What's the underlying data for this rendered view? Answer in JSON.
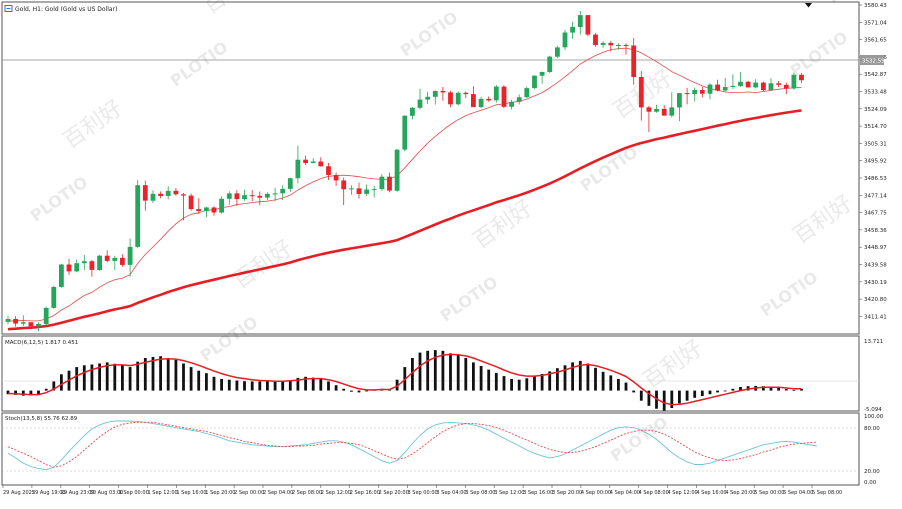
{
  "header": {
    "symbol_label": "Gold, H1:  Gold (Gold vs US Dollar)"
  },
  "watermark": {
    "brand": "PLOTIO",
    "cn": "百利好"
  },
  "price_panel": {
    "current_price": "3532.59",
    "y_ticks": [
      "3580.43",
      "3571.04",
      "3561.65",
      "3552.26",
      "3542.87",
      "3533.48",
      "3524.09",
      "3514.70",
      "3505.31",
      "3495.92",
      "3486.53",
      "3477.14",
      "3467.75",
      "3458.36",
      "3448.97",
      "3439.58",
      "3430.19",
      "3420.80",
      "3411.41"
    ]
  },
  "macd_panel": {
    "label": "MACD(6,12,5) 1.817 0.451",
    "y_ticks": [
      "13.711",
      "-5.094"
    ]
  },
  "stoch_panel": {
    "label": "Stoch(13,5,8) 55.76 62.89",
    "y_ticks": [
      "100.00",
      "80.00",
      "20.00",
      "0.00"
    ]
  },
  "x_axis": {
    "labels": [
      "29 Aug 2025",
      "29 Aug 19:00",
      "29 Aug 23:00",
      "30 Aug 03:00",
      "1 Sep 00:00",
      "1 Sep 12:00",
      "1 Sep 16:00",
      "1 Sep 20:00",
      "2 Sep 00:00",
      "2 Sep 04:00",
      "2 Sep 08:00",
      "2 Sep 12:00",
      "2 Sep 16:00",
      "2 Sep 20:00",
      "3 Sep 00:00",
      "3 Sep 04:00",
      "3 Sep 08:00",
      "3 Sep 12:00",
      "3 Sep 16:00",
      "3 Sep 20:00",
      "4 Sep 00:00",
      "4 Sep 04:00",
      "4 Sep 08:00",
      "4 Sep 12:00",
      "4 Sep 16:00",
      "4 Sep 20:00",
      "5 Sep 00:00",
      "5 Sep 04:00",
      "5 Sep 08:00"
    ]
  },
  "colors": {
    "bull": "#26a65b",
    "bear": "#e8232a",
    "ma_fast": "#e84a4a",
    "ma_slow": "#e81d23",
    "macd_signal": "#e81d23",
    "stoch_main": "#6fc2d8",
    "stoch_signal": "#e84a4a"
  },
  "chart_data": {
    "type": "candlestick",
    "ohlc": [
      [
        3410.5,
        3413.8,
        3409.2,
        3412.0
      ],
      [
        3412.0,
        3413.5,
        3407.9,
        3409.5
      ],
      [
        3409.5,
        3414.0,
        3408.3,
        3410.3
      ],
      [
        3410.3,
        3410.0,
        3406.4,
        3408.1
      ],
      [
        3408.1,
        3410.2,
        3405.4,
        3409.3
      ],
      [
        3409.3,
        3418.6,
        3408.8,
        3418.0
      ],
      [
        3418.0,
        3430.0,
        3417.5,
        3429.3
      ],
      [
        3429.3,
        3441.8,
        3428.9,
        3441.4
      ],
      [
        3441.4,
        3444.5,
        3435.9,
        3437.7
      ],
      [
        3437.7,
        3444.2,
        3437.2,
        3442.1
      ],
      [
        3442.1,
        3446.6,
        3438.4,
        3443.2
      ],
      [
        3443.2,
        3443.9,
        3434.9,
        3438.5
      ],
      [
        3438.5,
        3446.6,
        3438.0,
        3446.2
      ],
      [
        3446.2,
        3449.1,
        3442.6,
        3443.4
      ],
      [
        3443.4,
        3446.1,
        3438.4,
        3445.0
      ],
      [
        3445.0,
        3446.9,
        3440.2,
        3441.2
      ],
      [
        3441.2,
        3455.5,
        3434.8,
        3450.9
      ],
      [
        3450.9,
        3487.0,
        3450.4,
        3484.2
      ],
      [
        3484.2,
        3486.7,
        3470.5,
        3475.9
      ],
      [
        3475.9,
        3481.5,
        3474.6,
        3479.6
      ],
      [
        3479.6,
        3480.8,
        3477.2,
        3478.4
      ],
      [
        3478.4,
        3483.6,
        3476.6,
        3481.2
      ],
      [
        3481.2,
        3482.7,
        3478.5,
        3479.3
      ],
      [
        3479.3,
        3480.0,
        3465.2,
        3478.6
      ],
      [
        3478.6,
        3479.7,
        3470.4,
        3471.3
      ],
      [
        3471.3,
        3477.2,
        3468.7,
        3470.3
      ],
      [
        3470.3,
        3472.6,
        3467.0,
        3472.2
      ],
      [
        3472.2,
        3472.8,
        3467.7,
        3469.5
      ],
      [
        3469.5,
        3478.3,
        3468.9,
        3476.9
      ],
      [
        3476.9,
        3480.9,
        3473.7,
        3479.8
      ],
      [
        3479.8,
        3481.6,
        3473.1,
        3476.7
      ],
      [
        3476.7,
        3481.8,
        3475.8,
        3478.8
      ],
      [
        3478.8,
        3481.6,
        3475.6,
        3478.5
      ],
      [
        3478.5,
        3480.8,
        3473.4,
        3477.5
      ],
      [
        3477.5,
        3480.4,
        3476.1,
        3479.5
      ],
      [
        3479.5,
        3482.8,
        3475.6,
        3479.8
      ],
      [
        3479.8,
        3484.2,
        3476.1,
        3482.2
      ],
      [
        3482.2,
        3488.4,
        3480.6,
        3488.0
      ],
      [
        3488.0,
        3505.5,
        3485.2,
        3498.0
      ],
      [
        3498.0,
        3500.2,
        3495.2,
        3496.2
      ],
      [
        3496.2,
        3498.8,
        3496.0,
        3497.0
      ],
      [
        3497.0,
        3499.3,
        3494.2,
        3494.4
      ],
      [
        3494.4,
        3496.2,
        3487.0,
        3489.7
      ],
      [
        3489.7,
        3491.0,
        3483.9,
        3486.8
      ],
      [
        3486.8,
        3488.3,
        3473.5,
        3482.0
      ],
      [
        3482.0,
        3484.2,
        3479.1,
        3482.5
      ],
      [
        3482.5,
        3485.7,
        3477.0,
        3479.5
      ],
      [
        3479.5,
        3484.6,
        3478.5,
        3481.9
      ],
      [
        3481.9,
        3483.8,
        3477.7,
        3482.1
      ],
      [
        3482.1,
        3490.2,
        3481.3,
        3488.8
      ],
      [
        3488.8,
        3491.0,
        3480.4,
        3481.3
      ],
      [
        3481.3,
        3503.9,
        3480.7,
        3503.4
      ],
      [
        3503.4,
        3521.9,
        3502.5,
        3521.7
      ],
      [
        3521.7,
        3526.4,
        3519.7,
        3526.0
      ],
      [
        3526.0,
        3536.3,
        3525.1,
        3530.4
      ],
      [
        3530.4,
        3534.6,
        3528.1,
        3531.9
      ],
      [
        3531.9,
        3535.2,
        3527.7,
        3535.1
      ],
      [
        3535.1,
        3537.2,
        3529.7,
        3534.3
      ],
      [
        3534.3,
        3535.1,
        3526.3,
        3527.9
      ],
      [
        3527.9,
        3534.8,
        3527.3,
        3534.1
      ],
      [
        3534.1,
        3534.6,
        3531.2,
        3533.4
      ],
      [
        3533.4,
        3537.6,
        3526.4,
        3526.4
      ],
      [
        3526.4,
        3532.0,
        3525.8,
        3530.8
      ],
      [
        3530.8,
        3532.1,
        3529.3,
        3530.0
      ],
      [
        3530.0,
        3538.3,
        3528.8,
        3537.4
      ],
      [
        3537.4,
        3538.2,
        3525.9,
        3526.5
      ],
      [
        3526.5,
        3530.4,
        3525.1,
        3529.2
      ],
      [
        3529.2,
        3533.2,
        3527.8,
        3531.7
      ],
      [
        3531.7,
        3537.5,
        3531.2,
        3536.6
      ],
      [
        3536.6,
        3543.6,
        3536.2,
        3543.3
      ],
      [
        3543.3,
        3545.6,
        3539.0,
        3545.3
      ],
      [
        3545.3,
        3554.1,
        3544.8,
        3553.6
      ],
      [
        3553.6,
        3559.4,
        3552.8,
        3558.6
      ],
      [
        3558.6,
        3568.0,
        3557.2,
        3566.6
      ],
      [
        3566.6,
        3572.4,
        3563.3,
        3569.6
      ],
      [
        3569.6,
        3578.2,
        3565.5,
        3576.0
      ],
      [
        3576.0,
        3575.4,
        3564.6,
        3565.5
      ],
      [
        3565.5,
        3566.3,
        3558.9,
        3559.9
      ],
      [
        3559.9,
        3561.8,
        3558.4,
        3561.0
      ],
      [
        3561.0,
        3562.1,
        3556.4,
        3559.7
      ],
      [
        3559.7,
        3560.8,
        3557.4,
        3559.9
      ],
      [
        3559.9,
        3560.8,
        3554.7,
        3559.6
      ],
      [
        3559.6,
        3563.6,
        3538.5,
        3542.6
      ],
      [
        3542.6,
        3545.8,
        3519.1,
        3526.2
      ],
      [
        3526.2,
        3527.0,
        3512.9,
        3523.9
      ],
      [
        3523.9,
        3527.6,
        3523.3,
        3525.4
      ],
      [
        3525.4,
        3527.4,
        3521.8,
        3521.8
      ],
      [
        3521.8,
        3534.4,
        3520.8,
        3526.2
      ],
      [
        3526.2,
        3534.0,
        3518.8,
        3533.9
      ],
      [
        3533.9,
        3536.7,
        3527.8,
        3533.4
      ],
      [
        3533.4,
        3536.9,
        3529.4,
        3535.6
      ],
      [
        3535.6,
        3537.3,
        3531.6,
        3533.6
      ],
      [
        3533.6,
        3539.2,
        3530.5,
        3538.5
      ],
      [
        3538.5,
        3541.1,
        3534.8,
        3535.3
      ],
      [
        3535.3,
        3542.1,
        3534.6,
        3537.2
      ],
      [
        3537.2,
        3544.0,
        3536.1,
        3537.8
      ],
      [
        3537.8,
        3545.2,
        3537.2,
        3540.0
      ],
      [
        3540.0,
        3540.5,
        3536.9,
        3537.0
      ],
      [
        3537.0,
        3541.4,
        3536.5,
        3539.6
      ],
      [
        3539.6,
        3540.1,
        3535.0,
        3535.5
      ],
      [
        3535.5,
        3541.9,
        3535.0,
        3539.2
      ],
      [
        3539.2,
        3540.4,
        3537.2,
        3538.4
      ],
      [
        3538.4,
        3539.6,
        3533.3,
        3536.4
      ],
      [
        3536.4,
        3545.0,
        3535.7,
        3543.8
      ],
      [
        3543.8,
        3544.7,
        3539.3,
        3540.9
      ]
    ],
    "ma_fast": [
      3410.8,
      3411.1,
      3411.2,
      3411.0,
      3411.0,
      3412.0,
      3413.9,
      3416.8,
      3419.1,
      3422.0,
      3424.7,
      3426.4,
      3429.2,
      3431.6,
      3433.2,
      3434.1,
      3436.0,
      3442.0,
      3446.9,
      3450.9,
      3455.0,
      3459.4,
      3463.4,
      3466.5,
      3468.5,
      3469.3,
      3470.7,
      3471.0,
      3472.1,
      3472.7,
      3473.7,
      3474.3,
      3474.9,
      3475.3,
      3475.6,
      3476.3,
      3477.3,
      3478.9,
      3481.6,
      3484.0,
      3486.0,
      3487.8,
      3489.0,
      3489.4,
      3489.6,
      3489.3,
      3488.8,
      3488.1,
      3487.6,
      3487.4,
      3487.4,
      3489.3,
      3493.6,
      3498.2,
      3502.7,
      3506.9,
      3510.6,
      3513.9,
      3517.0,
      3519.6,
      3521.8,
      3523.3,
      3524.7,
      3526.0,
      3527.6,
      3528.1,
      3528.9,
      3529.5,
      3530.7,
      3532.4,
      3534.2,
      3536.7,
      3539.6,
      3542.7,
      3546.0,
      3549.6,
      3552.0,
      3554.2,
      3556.0,
      3557.4,
      3557.9,
      3558.2,
      3557.3,
      3555.6,
      3553.3,
      3550.9,
      3548.2,
      3545.5,
      3543.6,
      3541.5,
      3539.6,
      3537.8,
      3536.3,
      3535.5,
      3534.5,
      3534.2,
      3534.3,
      3534.5,
      3534.2,
      3534.8,
      3535.4,
      3536.0,
      3536.4,
      3536.8,
      3537.0
    ],
    "ma_slow": [
      3406.5,
      3406.8,
      3407.1,
      3407.3,
      3407.7,
      3408.2,
      3409.0,
      3410.0,
      3411.1,
      3412.1,
      3413.2,
      3414.1,
      3415.1,
      3416.2,
      3417.2,
      3418.0,
      3419.0,
      3420.7,
      3422.2,
      3423.7,
      3425.1,
      3426.6,
      3427.9,
      3429.2,
      3430.3,
      3431.3,
      3432.3,
      3433.2,
      3434.2,
      3435.2,
      3436.1,
      3437.0,
      3437.9,
      3438.8,
      3439.7,
      3440.6,
      3441.5,
      3442.5,
      3443.8,
      3444.9,
      3445.9,
      3446.9,
      3447.8,
      3448.6,
      3449.4,
      3450.1,
      3450.8,
      3451.5,
      3452.2,
      3452.9,
      3453.6,
      3454.6,
      3456.2,
      3457.9,
      3459.6,
      3461.3,
      3463.0,
      3464.7,
      3466.2,
      3467.8,
      3469.3,
      3470.7,
      3472.1,
      3473.5,
      3475.0,
      3476.2,
      3477.5,
      3478.8,
      3480.2,
      3481.8,
      3483.4,
      3485.1,
      3487.0,
      3489.0,
      3491.1,
      3493.3,
      3495.3,
      3497.2,
      3499.1,
      3500.9,
      3502.7,
      3504.4,
      3505.8,
      3507.0,
      3508.0,
      3509.1,
      3509.9,
      3510.9,
      3511.8,
      3512.7,
      3513.6,
      3514.5,
      3515.4,
      3516.3,
      3517.2,
      3518.1,
      3518.9,
      3519.8,
      3520.5,
      3521.3,
      3522.0,
      3522.7,
      3523.4,
      3524.0,
      3524.6
    ],
    "macd_hist": [
      -1.0,
      -1.2,
      -1.4,
      -1.3,
      -1.0,
      0.5,
      2.5,
      4.5,
      5.5,
      6.5,
      7.0,
      7.2,
      7.5,
      7.8,
      7.4,
      7.0,
      6.5,
      8.0,
      9.0,
      9.3,
      9.5,
      9.0,
      8.5,
      7.5,
      6.5,
      5.5,
      4.8,
      3.8,
      3.2,
      3.0,
      2.8,
      2.6,
      2.5,
      2.5,
      2.5,
      2.5,
      2.6,
      2.8,
      3.5,
      3.8,
      3.6,
      3.2,
      2.5,
      1.5,
      0.5,
      -0.3,
      -0.5,
      -0.2,
      0.2,
      0.5,
      0.3,
      3.0,
      6.5,
      9.0,
      10.5,
      11.0,
      11.2,
      11.0,
      10.3,
      9.8,
      9.0,
      7.8,
      6.8,
      5.8,
      4.9,
      4.0,
      3.2,
      3.0,
      3.4,
      4.0,
      4.6,
      5.3,
      6.2,
      7.0,
      7.8,
      8.2,
      7.5,
      6.3,
      5.2,
      4.2,
      3.2,
      2.2,
      -0.5,
      -2.8,
      -4.2,
      -5.0,
      -5.5,
      -4.8,
      -3.5,
      -2.8,
      -2.0,
      -1.5,
      -1.0,
      -0.5,
      0.0,
      0.5,
      1.0,
      1.2,
      1.3,
      1.2,
      1.0,
      0.8,
      0.4,
      0.2,
      0.5
    ],
    "macd_signal": [
      -0.8,
      -0.9,
      -1.0,
      -1.1,
      -1.1,
      -0.6,
      0.4,
      1.7,
      2.9,
      4.1,
      5.0,
      5.8,
      6.4,
      6.9,
      7.1,
      7.1,
      6.9,
      7.3,
      7.8,
      8.3,
      8.7,
      8.8,
      8.7,
      8.3,
      7.7,
      7.0,
      6.2,
      5.4,
      4.7,
      4.1,
      3.6,
      3.3,
      3.0,
      2.8,
      2.7,
      2.6,
      2.6,
      2.7,
      2.9,
      3.2,
      3.3,
      3.3,
      3.0,
      2.5,
      1.8,
      1.1,
      0.5,
      0.2,
      0.2,
      0.3,
      0.3,
      1.2,
      3.0,
      5.0,
      6.8,
      8.2,
      9.2,
      9.8,
      10.0,
      9.9,
      9.6,
      9.0,
      8.2,
      7.4,
      6.6,
      5.7,
      4.9,
      4.3,
      4.0,
      4.0,
      4.2,
      4.6,
      5.1,
      5.7,
      6.4,
      7.0,
      7.2,
      6.9,
      6.3,
      5.6,
      4.8,
      3.9,
      2.4,
      0.7,
      -0.9,
      -2.3,
      -3.4,
      -3.9,
      -3.8,
      -3.5,
      -3.0,
      -2.5,
      -2.0,
      -1.5,
      -1.0,
      -0.5,
      0.0,
      0.4,
      0.7,
      0.9,
      0.9,
      0.9,
      0.7,
      0.5,
      0.5
    ],
    "stoch_main": [
      45,
      38,
      30,
      25,
      22,
      20,
      24,
      35,
      48,
      60,
      72,
      82,
      88,
      92,
      94,
      94,
      94,
      93,
      92,
      90,
      88,
      86,
      84,
      82,
      80,
      78,
      75,
      72,
      68,
      64,
      62,
      60,
      58,
      57,
      56,
      55,
      55,
      56,
      57,
      58,
      60,
      62,
      64,
      64,
      62,
      58,
      52,
      46,
      40,
      34,
      30,
      34,
      46,
      60,
      72,
      82,
      88,
      91,
      92,
      91,
      90,
      88,
      85,
      80,
      74,
      68,
      62,
      56,
      50,
      45,
      41,
      38,
      40,
      44,
      50,
      56,
      62,
      68,
      74,
      80,
      84,
      85,
      84,
      80,
      74,
      66,
      56,
      46,
      38,
      32,
      28,
      28,
      30,
      34,
      38,
      42,
      46,
      50,
      54,
      58,
      60,
      62,
      63,
      62,
      60,
      58,
      56
    ],
    "stoch_signal": [
      55,
      50,
      45,
      40,
      34,
      28,
      24,
      26,
      32,
      40,
      50,
      60,
      70,
      78,
      85,
      89,
      91,
      92,
      92,
      92,
      90,
      88,
      86,
      84,
      82,
      80,
      78,
      75,
      72,
      69,
      66,
      63,
      61,
      59,
      57,
      56,
      55,
      55,
      56,
      56,
      57,
      59,
      60,
      61,
      61,
      60,
      58,
      54,
      49,
      44,
      39,
      36,
      38,
      44,
      52,
      61,
      70,
      78,
      84,
      88,
      90,
      90,
      89,
      87,
      84,
      80,
      75,
      70,
      65,
      60,
      55,
      51,
      48,
      46,
      46,
      48,
      51,
      55,
      60,
      65,
      70,
      75,
      78,
      80,
      80,
      78,
      74,
      68,
      61,
      54,
      47,
      42,
      38,
      35,
      34,
      35,
      37,
      40,
      43,
      47,
      50,
      54,
      57,
      59,
      60,
      61,
      62
    ],
    "y_range_price": [
      3405,
      3582
    ],
    "macd_range": [
      -5.094,
      13.711
    ],
    "stoch_range": [
      0,
      100
    ],
    "stoch_levels": [
      80,
      20
    ]
  }
}
